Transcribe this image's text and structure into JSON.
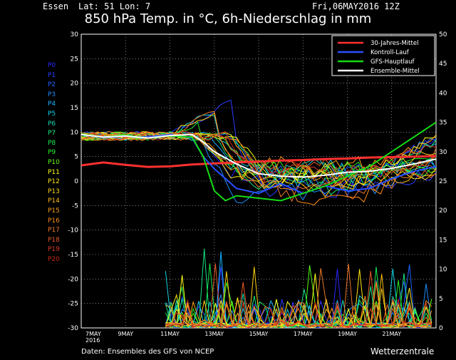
{
  "header": {
    "location": "Essen",
    "coords": "Lat: 51 Lon: 7",
    "run": "Fri,06MAY2016 12Z"
  },
  "title": "850 hPa Temp. in °C, 6h-Niederschlag in mm",
  "footer": {
    "source": "Daten: Ensembles des GFS von NCEP",
    "brand": "Wetterzentrale"
  },
  "members": [
    {
      "label": "P0",
      "color": "#2828ff"
    },
    {
      "label": "P1",
      "color": "#2a3cff"
    },
    {
      "label": "P2",
      "color": "#1e64ff"
    },
    {
      "label": "P3",
      "color": "#1e8cff"
    },
    {
      "label": "P4",
      "color": "#14b4ff"
    },
    {
      "label": "P5",
      "color": "#14d2e6"
    },
    {
      "label": "P6",
      "color": "#14dcb4"
    },
    {
      "label": "P7",
      "color": "#14e682"
    },
    {
      "label": "P8",
      "color": "#14f050"
    },
    {
      "label": "P9",
      "color": "#28f028"
    },
    {
      "label": "P10",
      "color": "#5aff14"
    },
    {
      "label": "P11",
      "color": "#ffff14"
    },
    {
      "label": "P12",
      "color": "#ffe614"
    },
    {
      "label": "P13",
      "color": "#ffd214"
    },
    {
      "label": "P14",
      "color": "#ffbe14"
    },
    {
      "label": "P15",
      "color": "#ffa014"
    },
    {
      "label": "P16",
      "color": "#ff8c14"
    },
    {
      "label": "P17",
      "color": "#f07828"
    },
    {
      "label": "P18",
      "color": "#e65a28"
    },
    {
      "label": "P19",
      "color": "#dc3c28"
    },
    {
      "label": "P20",
      "color": "#c82814"
    }
  ],
  "chart_data": {
    "type": "line",
    "y_left": {
      "min": -30,
      "max": 30,
      "ticks": [
        -30,
        -25,
        -20,
        -15,
        -10,
        -5,
        0,
        5,
        10,
        15,
        20,
        25,
        30
      ]
    },
    "y_right": {
      "min": 0,
      "max": 50,
      "ticks": [
        0,
        5,
        10,
        15,
        20,
        25,
        30,
        35,
        40,
        45,
        50
      ]
    },
    "x_ticks": [
      "7MAY",
      "9MAY",
      "11MAY",
      "13MAY",
      "15MAY",
      "17MAY",
      "19MAY",
      "21MAY"
    ],
    "x_tick_sub": "2016",
    "grid": true,
    "legend_position": "top-right",
    "legend": [
      {
        "label": "30-Jahres-Mittel",
        "color": "#ff3030"
      },
      {
        "label": "Kontroll-Lauf",
        "color": "#2850ff"
      },
      {
        "label": "GFS-Hauptlauf",
        "color": "#14dc14"
      },
      {
        "label": "Ensemble-Mittel",
        "color": "#ffffff"
      }
    ],
    "series": [
      {
        "name": "30-Jahres-Mittel",
        "color": "#ff3030",
        "x": [
          0,
          1,
          2,
          3,
          4,
          5,
          6,
          7,
          8,
          9,
          10,
          11,
          12,
          13,
          14,
          15,
          16
        ],
        "y": [
          3.2,
          3.8,
          3.3,
          2.9,
          3.0,
          3.4,
          3.6,
          3.8,
          4.0,
          4.2,
          4.3,
          4.5,
          4.6,
          4.8,
          4.9,
          5.0,
          5.1
        ]
      },
      {
        "name": "Kontroll-Lauf",
        "color": "#2850ff",
        "x": [
          0,
          1,
          2,
          3,
          4,
          5,
          5.5,
          6,
          7,
          8,
          9,
          10,
          11,
          12,
          13,
          14,
          15,
          16
        ],
        "y": [
          9.5,
          8.9,
          9.2,
          9.0,
          9.5,
          8.8,
          5.0,
          2.5,
          -1.5,
          -2.5,
          -0.5,
          -2.5,
          -1.0,
          -2.0,
          -1.5,
          0.5,
          2.0,
          3.0
        ]
      },
      {
        "name": "GFS-Hauptlauf",
        "color": "#14dc14",
        "x": [
          0,
          1,
          2,
          3,
          4,
          5,
          5.5,
          6,
          6.5,
          7,
          8,
          9,
          10,
          11,
          12,
          13,
          14,
          15,
          16
        ],
        "y": [
          9.6,
          9.0,
          9.4,
          8.8,
          9.2,
          9.0,
          5.0,
          -2.0,
          -4.0,
          -3.0,
          -3.5,
          -4.0,
          -2.5,
          -1.0,
          1.0,
          3.0,
          6.0,
          9.0,
          12.0
        ]
      },
      {
        "name": "Ensemble-Mittel",
        "color": "#ffffff",
        "x": [
          0,
          1,
          2,
          3,
          4,
          5,
          5.5,
          6,
          7,
          8,
          9,
          10,
          11,
          12,
          13,
          14,
          15,
          16
        ],
        "y": [
          9.5,
          9.0,
          9.2,
          8.8,
          9.3,
          9.5,
          8.0,
          6.0,
          3.5,
          1.5,
          1.0,
          0.8,
          1.2,
          1.8,
          2.0,
          2.6,
          3.5,
          4.5
        ]
      }
    ]
  }
}
